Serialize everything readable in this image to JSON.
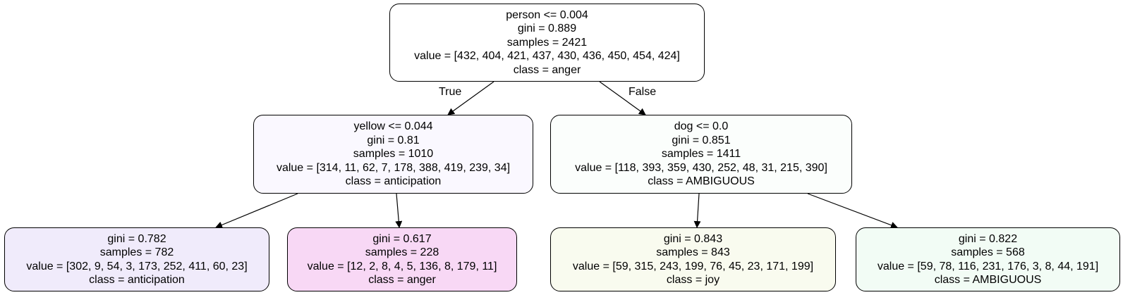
{
  "edge_labels": {
    "true_label": "True",
    "false_label": "False"
  },
  "nodes": {
    "root": {
      "condition": "person <= 0.004",
      "gini": "gini = 0.889",
      "samples": "samples = 2421",
      "value": "value = [432, 404, 421, 437, 430, 436, 450, 454, 424]",
      "class": "class = anger",
      "fill": "#ffffff"
    },
    "left": {
      "condition": "yellow <= 0.044",
      "gini": "gini = 0.81",
      "samples": "samples = 1010",
      "value": "value = [314, 11, 62, 7, 178, 388, 419, 239, 34]",
      "class": "class = anticipation",
      "fill": "#faf8ff"
    },
    "right": {
      "condition": "dog <= 0.0",
      "gini": "gini = 0.851",
      "samples": "samples = 1411",
      "value": "value = [118, 393, 359, 430, 252, 48, 31, 215, 390]",
      "class": "class = AMBIGUOUS",
      "fill": "#fbfefc"
    },
    "leaf_1": {
      "gini": "gini = 0.782",
      "samples": "samples = 782",
      "value": "value = [302, 9, 54, 3, 173, 252, 411, 60, 23]",
      "class": "class = anticipation",
      "fill": "#f0ebfb"
    },
    "leaf_2": {
      "gini": "gini = 0.617",
      "samples": "samples = 228",
      "value": "value = [12, 2, 8, 4, 5, 136, 8, 179, 11]",
      "class": "class = anger",
      "fill": "#f8d8f5"
    },
    "leaf_3": {
      "gini": "gini = 0.843",
      "samples": "samples = 843",
      "value": "value = [59, 315, 243, 199, 76, 45, 23, 171, 199]",
      "class": "class = joy",
      "fill": "#f9fbef"
    },
    "leaf_4": {
      "gini": "gini = 0.822",
      "samples": "samples = 568",
      "value": "value = [59, 78, 116, 231, 176, 3, 8, 44, 191]",
      "class": "class = AMBIGUOUS",
      "fill": "#f2fcf5"
    }
  }
}
